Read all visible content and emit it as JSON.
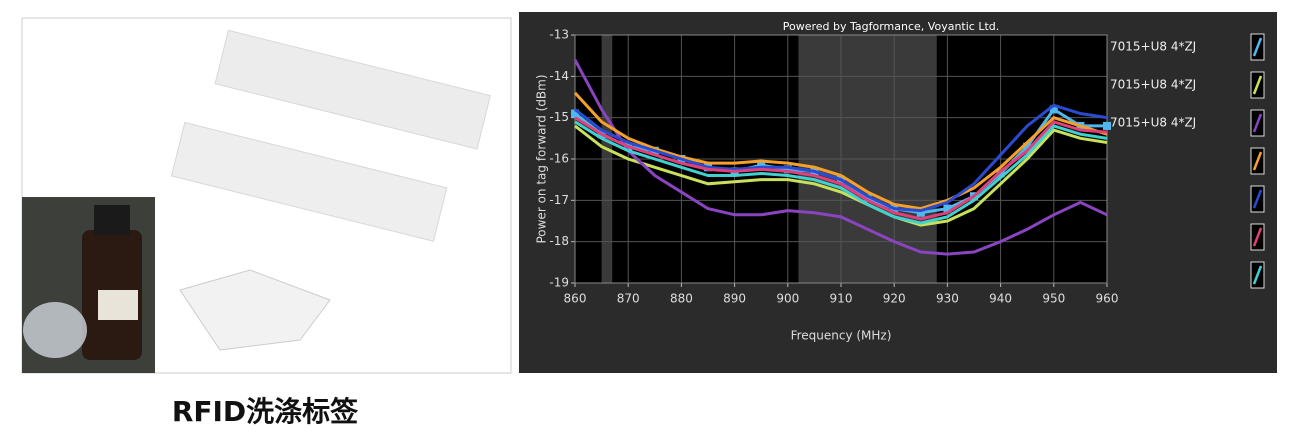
{
  "caption": "RFID洗涤标签",
  "chart_data": {
    "type": "line",
    "title": "Powered by Tagformance, Voyantic Ltd.",
    "x_label": "Frequency (MHz)",
    "y_label": "Power on tag forward (dBm)",
    "x": [
      860,
      865,
      870,
      875,
      880,
      885,
      890,
      895,
      900,
      905,
      910,
      915,
      920,
      925,
      930,
      935,
      940,
      945,
      950,
      955,
      960
    ],
    "xlim": [
      860,
      960
    ],
    "xticks": [
      860,
      870,
      880,
      890,
      900,
      910,
      920,
      930,
      940,
      950,
      960
    ],
    "ylim": [
      -19,
      -13
    ],
    "yticks": [
      -19,
      -18,
      -17,
      -16,
      -15,
      -14,
      -13
    ],
    "grid": true,
    "bands": [
      [
        865,
        867
      ],
      [
        902,
        928
      ]
    ],
    "series": [
      {
        "name": "7015+U8 4*ZJ",
        "color": "#4fb8f0",
        "marker": "square",
        "values": [
          -14.9,
          -15.4,
          -15.7,
          -15.8,
          -16.0,
          -16.2,
          -16.3,
          -16.15,
          -16.25,
          -16.3,
          -16.5,
          -16.95,
          -17.2,
          -17.3,
          -17.2,
          -16.9,
          -16.35,
          -15.7,
          -14.8,
          -15.2,
          -15.2
        ]
      },
      {
        "name": "7015+U8 4*ZJ",
        "color": "#c8e05a",
        "values": [
          -15.2,
          -15.7,
          -16.0,
          -16.2,
          -16.4,
          -16.6,
          -16.55,
          -16.5,
          -16.5,
          -16.6,
          -16.8,
          -17.1,
          -17.4,
          -17.6,
          -17.5,
          -17.2,
          -16.6,
          -16.0,
          -15.3,
          -15.5,
          -15.6
        ]
      },
      {
        "name": "7015+U8 4*ZJ",
        "color": "#8a44c0",
        "values": [
          -13.6,
          -14.8,
          -15.8,
          -16.4,
          -16.8,
          -17.2,
          -17.35,
          -17.35,
          -17.25,
          -17.3,
          -17.4,
          -17.7,
          -18.0,
          -18.25,
          -18.3,
          -18.25,
          -18.0,
          -17.7,
          -17.35,
          -17.05,
          -17.35
        ]
      },
      {
        "color": "#f5a02a",
        "values": [
          -14.4,
          -15.1,
          -15.5,
          -15.75,
          -15.95,
          -16.1,
          -16.1,
          -16.05,
          -16.1,
          -16.2,
          -16.4,
          -16.8,
          -17.1,
          -17.2,
          -17.0,
          -16.7,
          -16.2,
          -15.6,
          -15.0,
          -15.2,
          -15.4
        ]
      },
      {
        "color": "#2a4bd0",
        "values": [
          -14.8,
          -15.3,
          -15.6,
          -15.8,
          -16.0,
          -16.2,
          -16.25,
          -16.2,
          -16.2,
          -16.3,
          -16.5,
          -16.9,
          -17.2,
          -17.25,
          -17.05,
          -16.6,
          -15.9,
          -15.2,
          -14.7,
          -14.9,
          -15.0
        ]
      },
      {
        "color": "#e0407a",
        "values": [
          -15.0,
          -15.4,
          -15.7,
          -15.9,
          -16.1,
          -16.25,
          -16.3,
          -16.25,
          -16.3,
          -16.4,
          -16.6,
          -17.0,
          -17.3,
          -17.45,
          -17.3,
          -16.9,
          -16.3,
          -15.8,
          -15.1,
          -15.3,
          -15.35
        ]
      },
      {
        "color": "#40d0d0",
        "values": [
          -15.1,
          -15.5,
          -15.8,
          -16.0,
          -16.2,
          -16.4,
          -16.4,
          -16.35,
          -16.4,
          -16.5,
          -16.7,
          -17.1,
          -17.4,
          -17.55,
          -17.4,
          -17.0,
          -16.45,
          -15.9,
          -15.2,
          -15.4,
          -15.5
        ]
      }
    ]
  }
}
